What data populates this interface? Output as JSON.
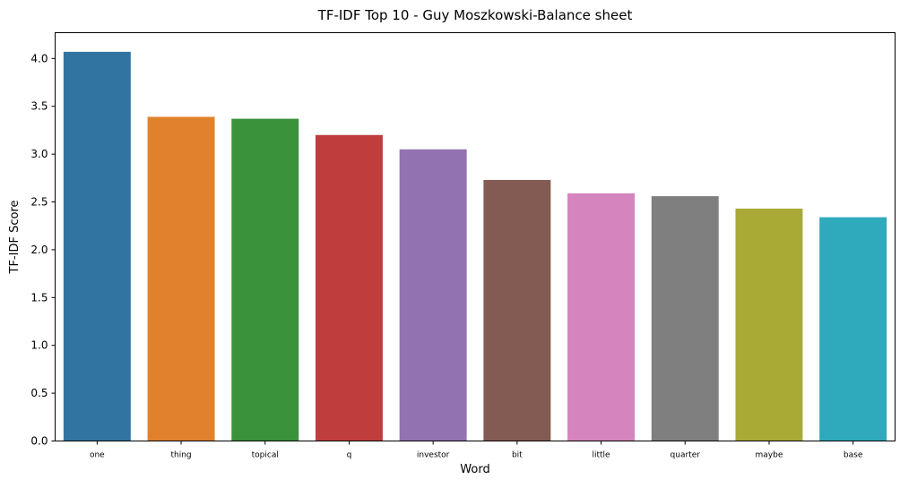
{
  "chart_data": {
    "type": "bar",
    "title": "TF-IDF Top 10 - Guy Moszkowski-Balance sheet",
    "xlabel": "Word",
    "ylabel": "TF-IDF Score",
    "categories": [
      "one",
      "thing",
      "topical",
      "q",
      "investor",
      "bit",
      "little",
      "quarter",
      "maybe",
      "base"
    ],
    "values": [
      4.07,
      3.39,
      3.37,
      3.2,
      3.05,
      2.73,
      2.59,
      2.56,
      2.43,
      2.34
    ],
    "colors": [
      "#3274a1",
      "#e1812c",
      "#3a923a",
      "#c03d3e",
      "#9372b2",
      "#845b53",
      "#d684bd",
      "#7f7f7f",
      "#a9aa35",
      "#2eaabc"
    ],
    "ylim": [
      0,
      4.27
    ],
    "yticks": [
      "0.0",
      "0.5",
      "1.0",
      "1.5",
      "2.0",
      "2.5",
      "3.0",
      "3.5",
      "4.0"
    ],
    "grid": false,
    "legend": "none"
  }
}
